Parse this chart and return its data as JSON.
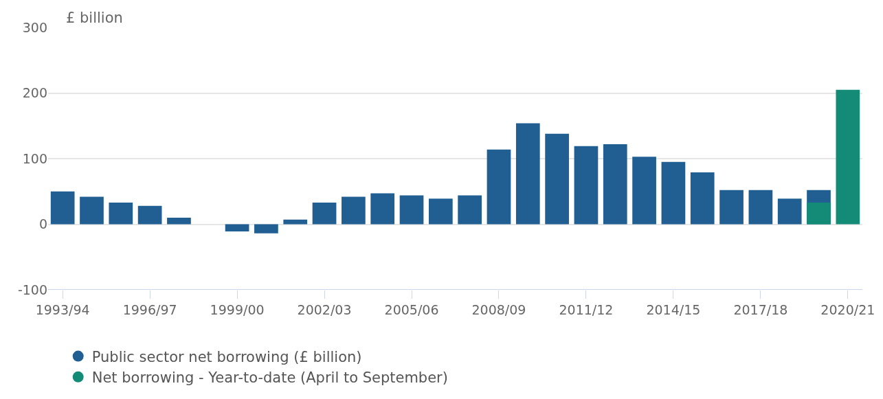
{
  "chart_data": {
    "type": "bar",
    "ylabel": "£ billion",
    "categories": [
      "1993/94",
      null,
      null,
      "1996/97",
      null,
      null,
      "1999/00",
      null,
      null,
      "2002/03",
      null,
      null,
      "2005/06",
      null,
      null,
      "2008/09",
      null,
      null,
      "2011/12",
      null,
      null,
      "2014/15",
      null,
      null,
      "2017/18",
      null,
      null,
      "2020/21"
    ],
    "series": [
      {
        "name": "Public sector net borrowing (£ billion)",
        "color": "#215f93",
        "values": [
          50,
          42,
          33,
          28,
          10,
          null,
          -11,
          -14,
          7,
          33,
          42,
          47,
          44,
          39,
          44,
          114,
          154,
          138,
          119,
          122,
          103,
          95,
          79,
          52,
          52,
          39,
          52,
          null
        ]
      },
      {
        "name": "Net borrowing - Year-to-date (April to September)",
        "color": "#138b76",
        "values": [
          null,
          null,
          null,
          null,
          null,
          null,
          null,
          null,
          null,
          null,
          null,
          null,
          null,
          null,
          null,
          null,
          null,
          null,
          null,
          null,
          null,
          null,
          null,
          null,
          null,
          null,
          33,
          205
        ]
      }
    ],
    "ylim": [
      -100,
      300
    ],
    "yticks": [
      -100,
      0,
      100,
      200,
      300
    ],
    "grid": "y",
    "legend": "bottom left",
    "marker": "circle"
  }
}
